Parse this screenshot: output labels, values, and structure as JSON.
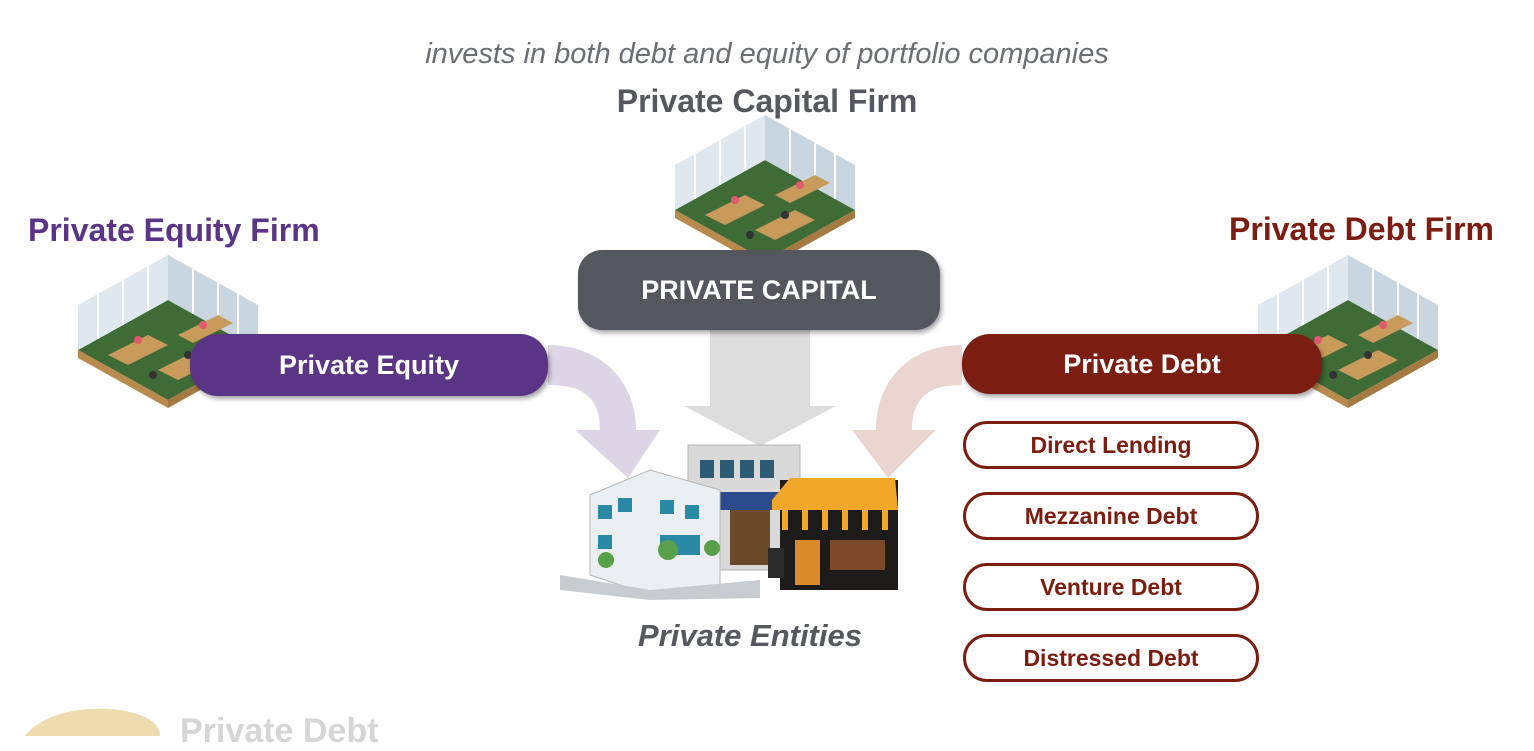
{
  "subtitle": "invests in both debt and equity of portfolio companies",
  "firms": {
    "capital_firm": "Private Capital Firm",
    "equity_firm": "Private Equity Firm",
    "debt_firm": "Private Debt Firm"
  },
  "pills": {
    "private_capital": "PRIVATE CAPITAL",
    "private_equity": "Private Equity",
    "private_debt": "Private Debt"
  },
  "debt_types": [
    "Direct Lending",
    "Mezzanine Debt",
    "Venture Debt",
    "Distressed Debt"
  ],
  "entities_label": "Private Entities",
  "watermark": "Private Debt",
  "colors": {
    "equity": "#5b3585",
    "debt": "#7b1d10",
    "capital": "#54575d",
    "equity_arrow": "#dcd5e6",
    "debt_arrow": "#ead5d0",
    "capital_arrow": "#dddddd"
  }
}
